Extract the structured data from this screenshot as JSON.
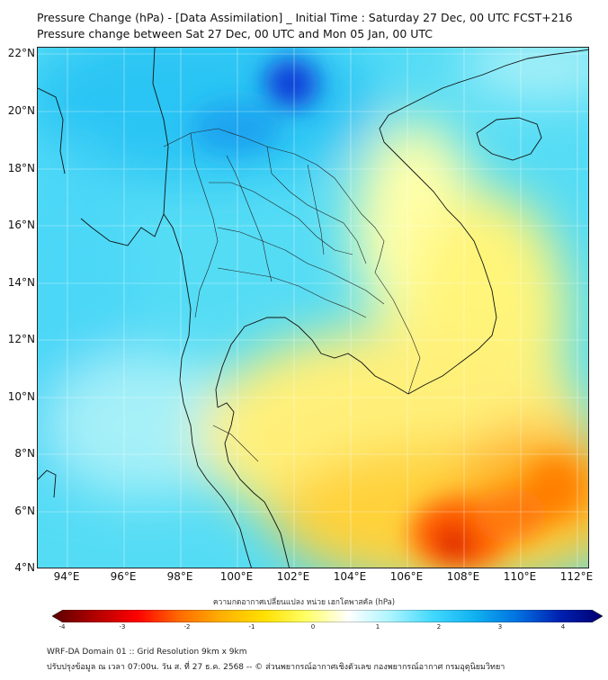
{
  "header": {
    "title_line1": "Pressure Change (hPa) - [Data Assimilation] _ Initial Time : Saturday 27 Dec, 00 UTC FCST+216",
    "title_line2": "Pressure change between Sat 27 Dec, 00 UTC and Mon 05 Jan, 00 UTC"
  },
  "map": {
    "lat_labels": [
      "22°N",
      "20°N",
      "18°N",
      "16°N",
      "14°N",
      "12°N",
      "10°N",
      "8°N",
      "6°N",
      "4°N"
    ],
    "lon_labels": [
      "94°E",
      "96°E",
      "98°E",
      "100°E",
      "102°E",
      "104°E",
      "106°E",
      "108°E",
      "110°E",
      "112°E"
    ]
  },
  "colorbar": {
    "title": "ความกดอากาศเปลี่ยนแปลง หน่วย เฮกโตพาสคัล (hPa)",
    "ticks": [
      "-4",
      "-3",
      "-2",
      "-1",
      "0",
      "1",
      "2",
      "3",
      "4"
    ],
    "colors": [
      "#5a0000",
      "#b00000",
      "#ff0000",
      "#ff6a00",
      "#ffb000",
      "#ffe000",
      "#ffff66",
      "#ffffff",
      "#aaf4ff",
      "#40d8ff",
      "#10b0f0",
      "#0070e0",
      "#0020b0",
      "#000070"
    ]
  },
  "footer": {
    "line1": "WRF-DA Domain 01 :: Grid Resolution 9km x 9km",
    "line2": "ปรับปรุงข้อมูล ณ เวลา 07:00น. วัน ส. ที่ 27 ธ.ค. 2568 -- © ส่วนพยากรณ์อากาศเชิงตัวเลข กองพยากรณ์อากาศ กรมอุตุนิยมวิทยา"
  }
}
